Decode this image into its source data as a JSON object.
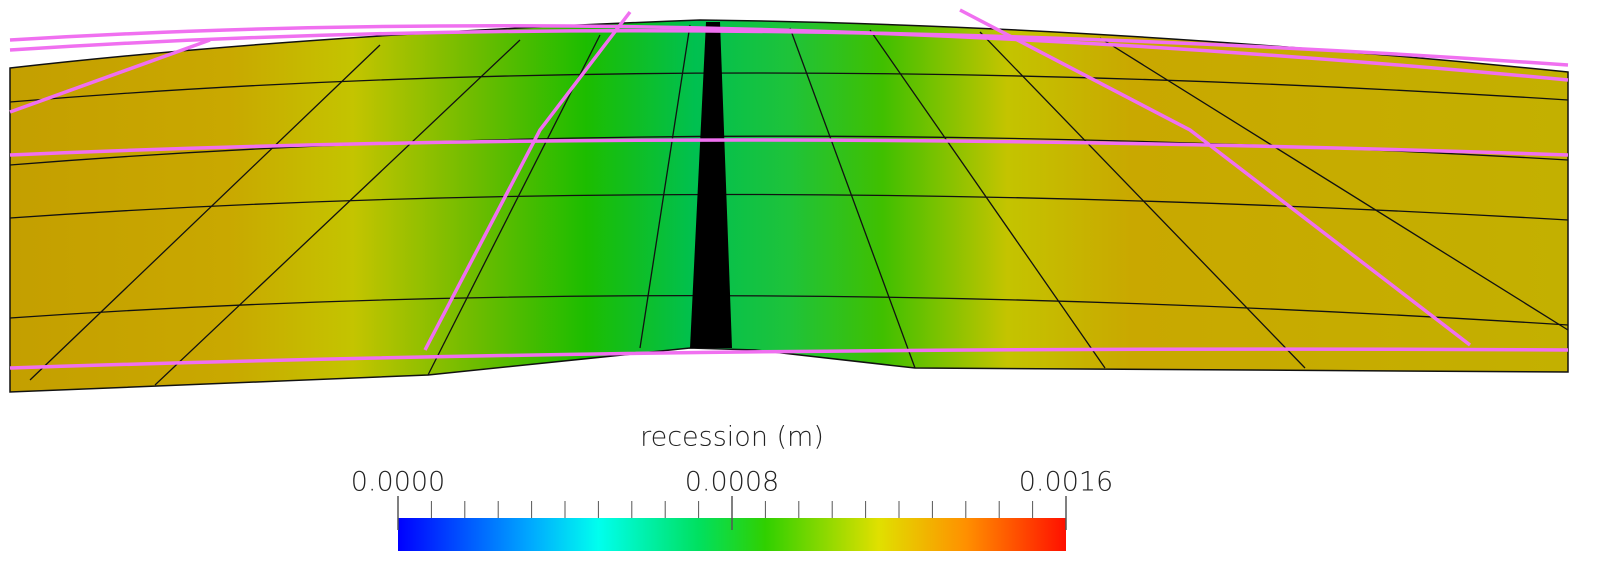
{
  "colorbar": {
    "title": "recession (m)",
    "range": [
      0,
      0.0016
    ],
    "ticks": [
      {
        "value": 0,
        "label": "0.0000"
      },
      {
        "value": 0.0008,
        "label": "0.0008"
      },
      {
        "value": 0.0016,
        "label": "0.0016"
      }
    ],
    "minor_ticks": [
      0,
      8e-05,
      0.00016,
      0.00024,
      0.00032,
      0.0004,
      0.00048,
      0.00056,
      0.00064,
      0.00072,
      0.0008,
      0.00088,
      0.00096,
      0.00104,
      0.00112,
      0.0012,
      0.00128,
      0.00136,
      0.00144,
      0.00152,
      0.0016
    ]
  }
}
